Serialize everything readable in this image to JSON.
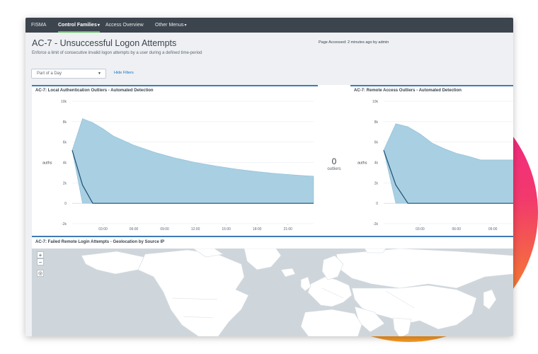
{
  "nav": {
    "items": [
      {
        "label": "FISMA"
      },
      {
        "label": "Control Families",
        "caret": "▾",
        "active": true
      },
      {
        "label": "Access Overview"
      },
      {
        "label": "Other Menus",
        "caret": "▾"
      }
    ]
  },
  "page": {
    "title": "AC-7 - Unsuccessful Logon Attempts",
    "description": "Enforce a limit of consecutive invalid logon attempts by a user during a defined time-period",
    "accessed": "Page Accessed: 2 minutes ago by admin"
  },
  "filters": {
    "dropdown_value": "Part of a Day",
    "hide_filters": "Hide Filters"
  },
  "panels": {
    "local_auth": {
      "title": "AC-7: Local Authentication Outliers - Automated Detection"
    },
    "outliers": {
      "value": "0",
      "caption": "outliers"
    },
    "remote_access": {
      "title": "AC-7: Remote Access Outliers - Automated Detection"
    },
    "map": {
      "title": "AC-7: Failed Remote Login Attempts - Geolocation by Source IP",
      "zoom_in": "+",
      "zoom_out": "−",
      "locate": "◎"
    }
  },
  "colors": {
    "nav_bg": "#3c444d",
    "accent_green": "#5cc05c",
    "panel_border": "#3e7bb5",
    "area_fill": "#a9cfe2",
    "area_stroke": "#8cbdd6",
    "line": "#1f4f73",
    "link": "#1a73c6",
    "map_land": "#ffffff",
    "map_water": "#cfd6db",
    "blob_pink": "#f01e8c",
    "blob_orange": "#f79a22"
  },
  "chart_data": [
    {
      "type": "area",
      "title": "AC-7: Local Authentication Outliers - Automated Detection",
      "ylabel": "auths",
      "ylim": [
        -2000,
        10000
      ],
      "yticks": [
        "10k",
        "8k",
        "6k",
        "4k",
        "2k",
        "0",
        "-2k"
      ],
      "ytick_values": [
        10000,
        8000,
        6000,
        4000,
        2000,
        0,
        -2000
      ],
      "xticks": [
        "03:00",
        "06:00",
        "09:00",
        "12:00",
        "15:00",
        "18:00",
        "21:00"
      ],
      "xtick_hours": [
        3,
        6,
        9,
        12,
        15,
        18,
        21
      ],
      "xlim": [
        0,
        23.5
      ],
      "series": [
        {
          "type": "band",
          "x": [
            0,
            1,
            2,
            3,
            4,
            6,
            8,
            10,
            12,
            14,
            16,
            18,
            20,
            22,
            23.5
          ],
          "upper": [
            5200,
            8300,
            7900,
            7300,
            6600,
            5700,
            5000,
            4450,
            4000,
            3650,
            3350,
            3100,
            2900,
            2750,
            2650
          ],
          "lower": [
            5200,
            0,
            0,
            0,
            0,
            0,
            0,
            0,
            0,
            0,
            0,
            0,
            0,
            0,
            0
          ]
        },
        {
          "type": "line",
          "x": [
            0,
            1,
            2,
            3,
            6,
            9,
            12,
            15,
            18,
            21,
            23.5
          ],
          "y": [
            5200,
            1800,
            0,
            0,
            0,
            0,
            0,
            0,
            0,
            0,
            0
          ]
        }
      ]
    },
    {
      "type": "area",
      "title": "AC-7: Remote Access Outliers - Automated Detection",
      "ylabel": "auths",
      "ylim": [
        -2000,
        10000
      ],
      "yticks": [
        "10k",
        "8k",
        "6k",
        "4k",
        "2k",
        "0",
        "-2k"
      ],
      "ytick_values": [
        10000,
        8000,
        6000,
        4000,
        2000,
        0,
        -2000
      ],
      "xticks": [
        "03:00",
        "06:00",
        "09:00"
      ],
      "xtick_hours": [
        3,
        6,
        9
      ],
      "xlim": [
        0,
        10.8
      ],
      "series": [
        {
          "type": "band",
          "x": [
            0,
            1,
            2,
            3,
            4,
            5,
            6,
            7,
            8,
            9,
            10.8
          ],
          "upper": [
            5200,
            7800,
            7500,
            6800,
            5900,
            5350,
            4900,
            4600,
            4250,
            4250,
            4250
          ],
          "lower": [
            5200,
            0,
            0,
            0,
            0,
            0,
            0,
            0,
            0,
            0,
            0
          ]
        },
        {
          "type": "line",
          "x": [
            0,
            1,
            2,
            3,
            6,
            9,
            10.8
          ],
          "y": [
            5200,
            1800,
            0,
            0,
            0,
            0,
            0
          ]
        }
      ]
    }
  ]
}
